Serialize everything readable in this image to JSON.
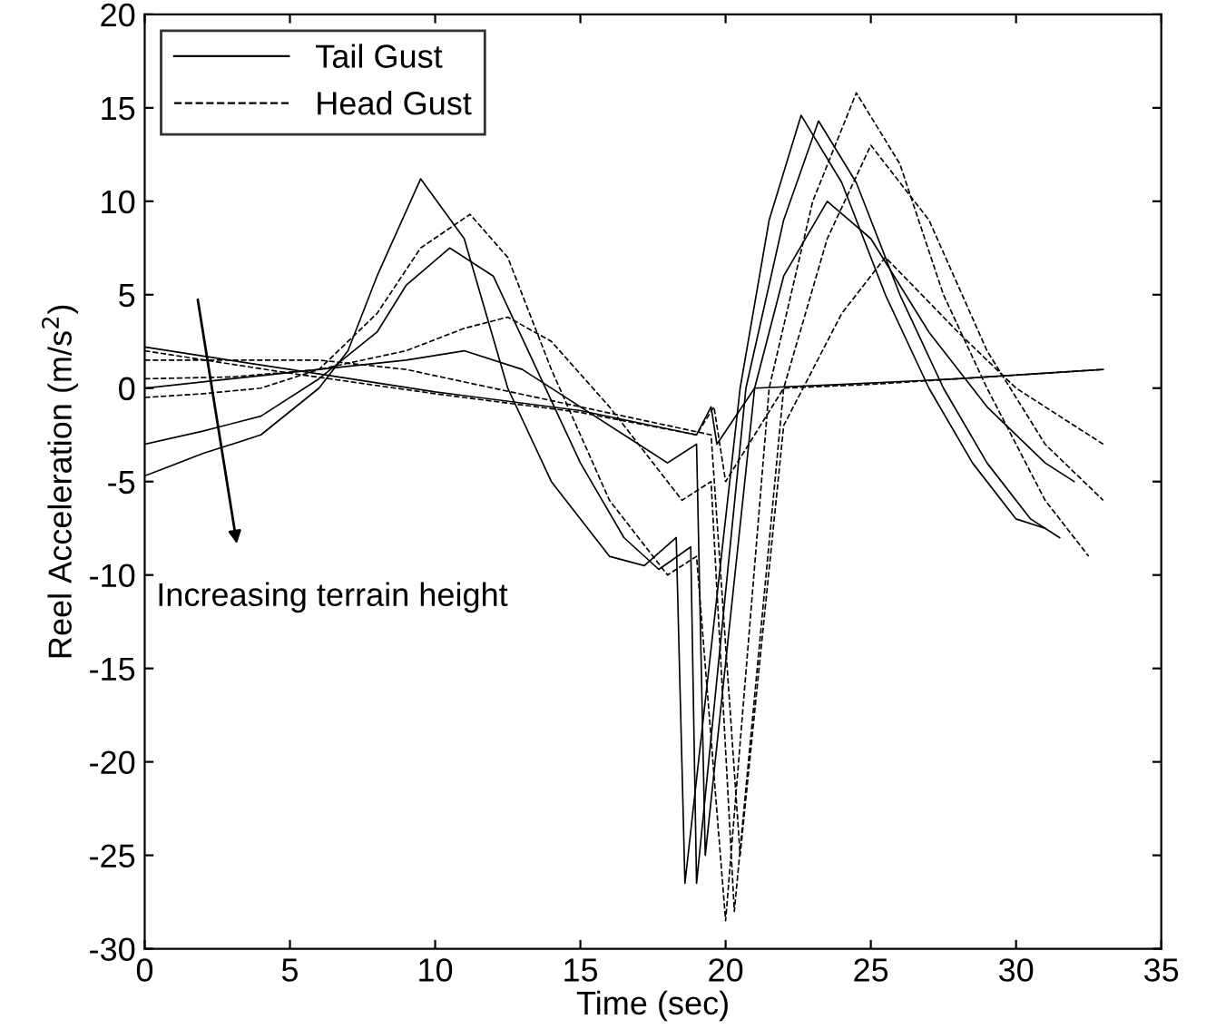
{
  "chart_data": {
    "type": "line",
    "xlabel": "Time (sec)",
    "ylabel": "Reel Acceleration (m/s$^{2}$)",
    "xlim": [
      0,
      35
    ],
    "ylim": [
      -30,
      20
    ],
    "xticks": [
      0,
      5,
      10,
      15,
      20,
      25,
      30,
      35
    ],
    "yticks": [
      -30,
      -25,
      -20,
      -15,
      -10,
      -5,
      0,
      5,
      10,
      15,
      20
    ],
    "grid": false,
    "legend": "top left",
    "marker": "none",
    "annotations": [
      "Increasing terrain height"
    ],
    "series": [
      {
        "name": "Tail Gust",
        "color": "#000000",
        "line_style": "solid",
        "x": [
          0,
          2,
          4,
          6,
          7,
          8,
          9.5,
          11,
          12.5,
          14,
          16,
          17.2,
          18.3,
          18.6,
          20.5,
          21.5,
          22.6,
          24,
          25.5,
          27,
          28.5,
          30,
          31
        ],
        "values": [
          -4.7,
          -3.5,
          -2.5,
          0,
          2,
          6,
          11.2,
          8,
          0,
          -5,
          -9,
          -9.5,
          -8,
          -26.5,
          0,
          9,
          14.6,
          11,
          5,
          0,
          -4,
          -7,
          -7.5
        ]
      },
      {
        "color": "#000000",
        "line_style": "solid",
        "x": [
          0,
          2,
          4,
          6,
          8,
          9,
          10.5,
          12,
          13.5,
          15,
          16.5,
          17.7,
          18.8,
          19,
          20.7,
          22,
          23.2,
          24.5,
          26,
          27.5,
          29,
          30.5,
          31.5
        ],
        "values": [
          -3,
          -2.3,
          -1.5,
          0.5,
          3,
          5.5,
          7.5,
          6,
          1,
          -4,
          -8,
          -9.7,
          -8.5,
          -26.5,
          0,
          9,
          14.3,
          11,
          5,
          0,
          -4,
          -7,
          -8
        ]
      },
      {
        "color": "#000000",
        "line_style": "solid",
        "x": [
          0,
          3,
          6,
          9,
          11,
          13,
          15,
          17,
          18,
          19,
          19.3,
          21,
          22,
          23.5,
          25,
          27,
          29,
          31,
          32
        ],
        "values": [
          0,
          0.5,
          1,
          1.5,
          2,
          1,
          -1,
          -3,
          -4,
          -3,
          -25,
          0,
          6,
          10,
          8,
          3,
          -1,
          -4,
          -5
        ]
      },
      {
        "color": "#000000",
        "line_style": "solid",
        "x": [
          0,
          5,
          10,
          15,
          19,
          19.5,
          19.7,
          21,
          24,
          28,
          33
        ],
        "values": [
          2.2,
          1,
          -0.2,
          -1.2,
          -2.5,
          -1,
          -3,
          0,
          0.2,
          0.5,
          1
        ]
      },
      {
        "name": "Head Gust",
        "color": "#000000",
        "line_style": "dashed",
        "x": [
          0,
          2,
          4,
          6,
          8,
          9.5,
          11.2,
          12.5,
          14,
          16,
          18,
          19,
          20,
          21.5,
          23,
          24.5,
          26,
          27.5,
          29,
          31,
          32.5
        ],
        "values": [
          -0.5,
          -0.3,
          0,
          1,
          4,
          7.5,
          9.3,
          7,
          1,
          -6,
          -10,
          -9,
          -28.5,
          0,
          10,
          15.8,
          12,
          5,
          0,
          -6,
          -9
        ]
      },
      {
        "color": "#000000",
        "line_style": "dashed",
        "x": [
          0,
          3,
          6,
          9,
          11,
          12.5,
          14,
          16,
          18.5,
          19.5,
          20.3,
          22,
          23.5,
          25,
          27,
          29,
          31,
          33
        ],
        "values": [
          0.5,
          0.6,
          1,
          2,
          3.2,
          3.8,
          2.5,
          -1,
          -6,
          -5,
          -28,
          0,
          8,
          13,
          9,
          2,
          -3,
          -6
        ]
      },
      {
        "color": "#000000",
        "line_style": "dashed",
        "x": [
          0,
          3,
          6,
          9,
          12,
          15,
          18,
          19.5,
          20.5,
          22,
          24,
          25.5,
          28,
          30,
          33
        ],
        "values": [
          1.5,
          1.5,
          1.5,
          1,
          0,
          -1,
          -2,
          -2.5,
          -25,
          -2,
          4,
          7,
          3,
          0,
          -3
        ]
      },
      {
        "color": "#000000",
        "line_style": "dashed",
        "x": [
          0,
          5,
          10,
          15,
          19,
          19.6,
          20,
          22,
          25,
          28,
          33
        ],
        "values": [
          2,
          0.8,
          -0.3,
          -1.3,
          -2.5,
          -1,
          -5,
          0,
          0.2,
          0.5,
          1
        ]
      }
    ]
  }
}
